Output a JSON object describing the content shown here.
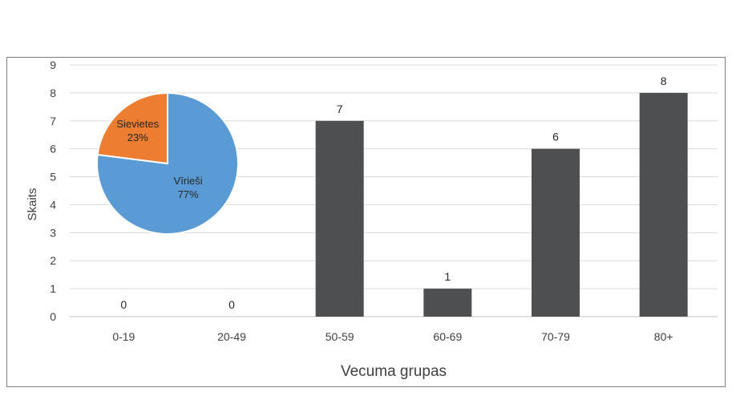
{
  "chart_data": [
    {
      "type": "bar",
      "categories": [
        "0-19",
        "20-49",
        "50-59",
        "60-69",
        "70-79",
        "80+"
      ],
      "values": [
        0,
        0,
        7,
        1,
        6,
        8
      ],
      "data_labels": [
        "0",
        "0",
        "7",
        "1",
        "6",
        "8"
      ],
      "xlabel": "Vecuma grupas",
      "ylabel": "Skaits",
      "ylim": [
        0,
        9
      ],
      "yticks": [
        "0",
        "1",
        "2",
        "3",
        "4",
        "5",
        "6",
        "7",
        "8",
        "9"
      ],
      "grid": true,
      "bar_color": "#4d4f50"
    },
    {
      "type": "pie",
      "slices": [
        {
          "label": "Vīrieši",
          "percent_label": "77%",
          "value": 77,
          "color": "#5b9bd5"
        },
        {
          "label": "Sievietes",
          "percent_label": "23%",
          "value": 23,
          "color": "#ed7d31"
        }
      ]
    }
  ]
}
